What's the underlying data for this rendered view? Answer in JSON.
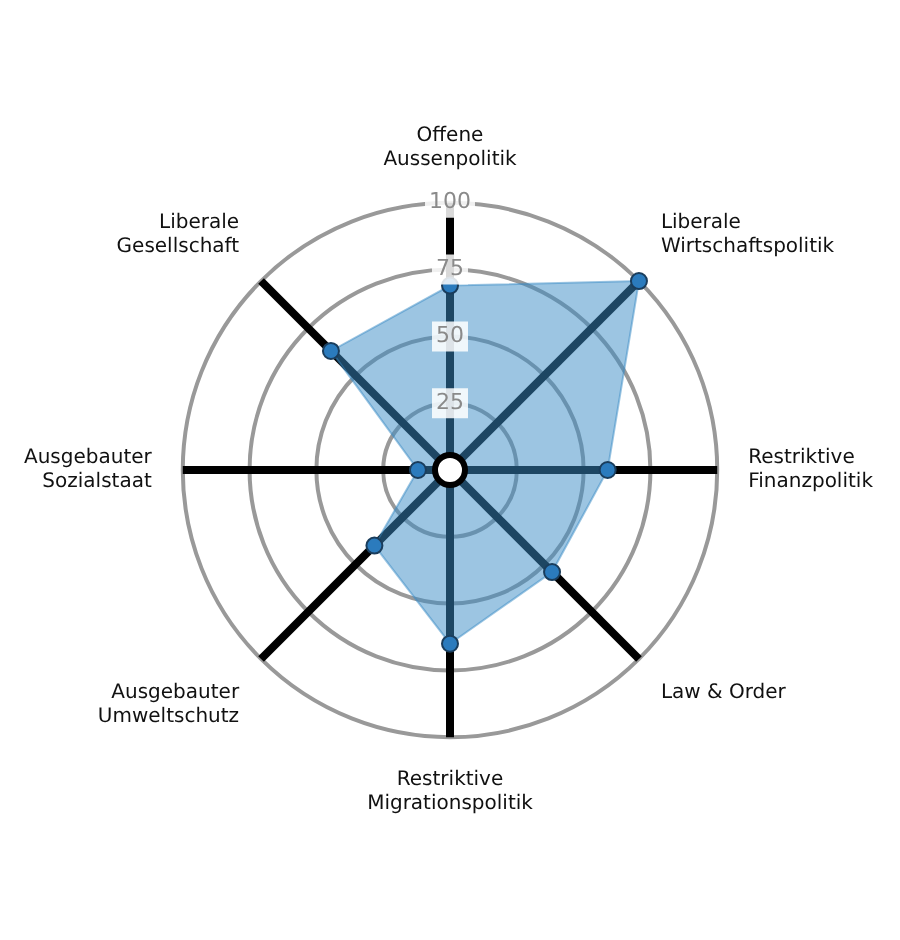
{
  "chart_data": {
    "type": "radar",
    "categories": [
      "Offene Aussenpolitik",
      "Liberale Wirtschaftspolitik",
      "Restriktive Finanzpolitik",
      "Law & Order",
      "Restriktive Migrationspolitik",
      "Ausgebauter Umweltschutz",
      "Ausgebauter Sozialstaat",
      "Liberale Gesellschaft"
    ],
    "series": [
      {
        "color": "#3a8cc6",
        "values": [
          69,
          100,
          59,
          54,
          65,
          40,
          12,
          63
        ]
      }
    ],
    "ylim": [
      0,
      100
    ],
    "yticks": [
      25,
      50,
      75,
      100
    ],
    "grid": true,
    "marker": "circle",
    "legend": false
  }
}
